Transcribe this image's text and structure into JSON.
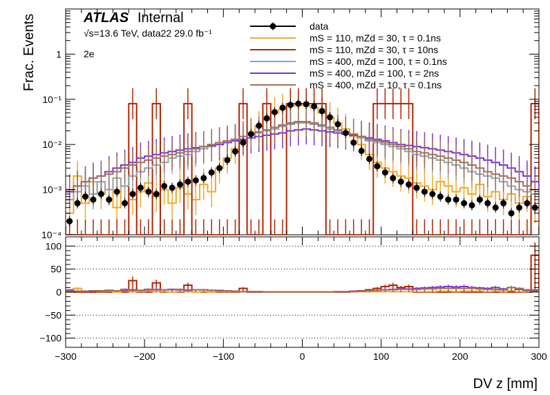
{
  "chart_data": [
    {
      "type": "line",
      "panel": "main",
      "title": "",
      "experiment_label": "ATLAS",
      "status_label": "Internal",
      "energy_line": "√s=13.6 TeV, data22 29.0 fb⁻¹",
      "channel_label": "2e",
      "ylabel": "Frac. Events",
      "xlabel": "DV z [mm]",
      "xlim": [
        -300,
        300
      ],
      "ylim": [
        0.0001,
        10
      ],
      "yscale": "log",
      "x_ticks": [
        "−300",
        "−200",
        "−100",
        "0",
        "100",
        "200",
        "300"
      ],
      "y_ticks": [
        "10⁻⁴",
        "10⁻³",
        "10⁻²",
        "10⁻¹",
        "1"
      ],
      "legend_position": "top-right",
      "x_bins": [
        -295,
        -285,
        -275,
        -265,
        -255,
        -245,
        -235,
        -225,
        -215,
        -205,
        -195,
        -185,
        -175,
        -165,
        -155,
        -145,
        -135,
        -125,
        -115,
        -105,
        -95,
        -85,
        -75,
        -65,
        -55,
        -45,
        -35,
        -25,
        -15,
        -5,
        5,
        15,
        25,
        35,
        45,
        55,
        65,
        75,
        85,
        95,
        105,
        115,
        125,
        135,
        145,
        155,
        165,
        175,
        185,
        195,
        205,
        215,
        225,
        235,
        245,
        255,
        265,
        275,
        285,
        295
      ],
      "series": [
        {
          "name": "data",
          "style": "markers",
          "color": "#000000",
          "values": [
            0.0002,
            0.0005,
            0.0007,
            0.0006,
            0.0008,
            0.0006,
            0.0009,
            0.0005,
            0.0008,
            0.0011,
            0.0009,
            0.0008,
            0.0012,
            0.0011,
            0.0013,
            0.0015,
            0.0016,
            0.0018,
            0.0024,
            0.003,
            0.0045,
            0.007,
            0.011,
            0.017,
            0.026,
            0.038,
            0.052,
            0.065,
            0.075,
            0.08,
            0.078,
            0.07,
            0.055,
            0.04,
            0.028,
            0.018,
            0.011,
            0.0072,
            0.0048,
            0.0033,
            0.0024,
            0.0018,
            0.0015,
            0.0013,
            0.0011,
            0.0009,
            0.0008,
            0.0007,
            0.0006,
            0.0006,
            0.0005,
            0.00045,
            0.0006,
            0.0005,
            0.0004,
            0.0005,
            0.0003,
            0.0004,
            0.0005,
            0.0004
          ]
        },
        {
          "name": "mS = 110, mZd = 30, τ = 0.1ns",
          "style": "hist",
          "color": "#f5a623",
          "values": [
            0.0003,
            0.002,
            0.0005,
            0.0015,
            0.0008,
            0.001,
            0.0004,
            0.0012,
            0.0006,
            0.0009,
            0.0014,
            0.0007,
            0.001,
            0.0005,
            0.0011,
            0.0008,
            0.0006,
            0.0013,
            0.0009,
            0.003,
            0.005,
            0.008,
            0.012,
            0.018,
            0.025,
            0.035,
            0.05,
            0.06,
            0.07,
            0.075,
            0.072,
            0.065,
            0.05,
            0.04,
            0.03,
            0.022,
            0.015,
            0.01,
            0.006,
            0.004,
            0.003,
            0.0025,
            0.002,
            0.0018,
            0.0014,
            0.0012,
            0.001,
            0.0015,
            0.0012,
            0.0009,
            0.0011,
            0.0008,
            0.0013,
            0.0007,
            0.0009,
            0.0006,
            0.0008,
            0.0005,
            0.0007,
            0.0004
          ]
        },
        {
          "name": "mS = 110, mZd = 30, τ = 10ns",
          "style": "hist",
          "color": "#b22200",
          "values": [
            0.0001,
            0.0001,
            0.0001,
            0.0001,
            0.0001,
            0.0001,
            0.0001,
            0.0001,
            0.08,
            0.0001,
            0.0001,
            0.08,
            0.0001,
            0.0001,
            0.0001,
            0.08,
            0.0001,
            0.0001,
            0.0001,
            0.0001,
            0.0001,
            0.0001,
            0.08,
            0.0001,
            0.0001,
            0.08,
            0.0001,
            0.0001,
            0.08,
            0.08,
            0.08,
            0.08,
            0.08,
            0.0001,
            0.0001,
            0.0001,
            0.0001,
            0.0001,
            0.0001,
            0.08,
            0.08,
            0.08,
            0.08,
            0.08,
            0.0001,
            0.0001,
            0.0001,
            0.0001,
            0.0001,
            0.0001,
            0.0001,
            0.0001,
            0.0001,
            0.0001,
            0.0001,
            0.0001,
            0.0001,
            0.0001,
            0.0001,
            0.08
          ]
        },
        {
          "name": "mS = 400, mZd = 100, τ = 0.1ns",
          "style": "hist",
          "color": "#8ea3a8",
          "values": [
            0.0006,
            0.0009,
            0.0012,
            0.0008,
            0.0015,
            0.001,
            0.0018,
            0.0012,
            0.002,
            0.0025,
            0.003,
            0.0035,
            0.004,
            0.005,
            0.0055,
            0.006,
            0.007,
            0.008,
            0.009,
            0.01,
            0.012,
            0.013,
            0.015,
            0.016,
            0.018,
            0.02,
            0.022,
            0.025,
            0.028,
            0.03,
            0.03,
            0.028,
            0.025,
            0.022,
            0.02,
            0.018,
            0.016,
            0.014,
            0.012,
            0.011,
            0.01,
            0.009,
            0.008,
            0.007,
            0.006,
            0.0055,
            0.005,
            0.0045,
            0.004,
            0.0035,
            0.003,
            0.0025,
            0.0022,
            0.002,
            0.0018,
            0.0015,
            0.0012,
            0.001,
            0.0009,
            0.0008
          ]
        },
        {
          "name": "mS = 400, mZd = 100, τ = 2ns",
          "style": "hist",
          "color": "#7b2fd9",
          "values": [
            0.0009,
            0.0012,
            0.0015,
            0.0018,
            0.002,
            0.0025,
            0.003,
            0.0035,
            0.004,
            0.005,
            0.0055,
            0.006,
            0.0065,
            0.007,
            0.0075,
            0.008,
            0.0085,
            0.009,
            0.0095,
            0.01,
            0.011,
            0.012,
            0.013,
            0.014,
            0.015,
            0.016,
            0.017,
            0.018,
            0.02,
            0.021,
            0.022,
            0.021,
            0.02,
            0.019,
            0.018,
            0.017,
            0.016,
            0.015,
            0.014,
            0.013,
            0.012,
            0.011,
            0.01,
            0.0095,
            0.009,
            0.0085,
            0.008,
            0.0075,
            0.007,
            0.0065,
            0.006,
            0.0055,
            0.005,
            0.0045,
            0.004,
            0.0035,
            0.003,
            0.0025,
            0.002,
            0.0015
          ]
        },
        {
          "name": "mS = 400, mZd = 10, τ = 0.1ns",
          "style": "hist",
          "color": "#a0705a",
          "values": [
            0.001,
            0.0012,
            0.0015,
            0.0018,
            0.002,
            0.0022,
            0.0025,
            0.003,
            0.0035,
            0.004,
            0.0045,
            0.005,
            0.0055,
            0.006,
            0.0065,
            0.007,
            0.008,
            0.009,
            0.01,
            0.011,
            0.012,
            0.013,
            0.015,
            0.017,
            0.019,
            0.021,
            0.024,
            0.027,
            0.03,
            0.032,
            0.032,
            0.03,
            0.027,
            0.024,
            0.021,
            0.019,
            0.017,
            0.015,
            0.013,
            0.012,
            0.011,
            0.01,
            0.009,
            0.008,
            0.007,
            0.0065,
            0.006,
            0.0055,
            0.005,
            0.0045,
            0.004,
            0.0035,
            0.003,
            0.0025,
            0.0022,
            0.002,
            0.0018,
            0.0015,
            0.0012,
            0.001
          ]
        }
      ]
    },
    {
      "type": "line",
      "panel": "ratio",
      "title": "",
      "xlabel": "DV z [mm]",
      "ylabel": "",
      "xlim": [
        -300,
        300
      ],
      "ylim": [
        -120,
        120
      ],
      "y_ticks": [
        "100",
        "50",
        "0",
        "−50",
        "−100"
      ],
      "y_tick_values": [
        100,
        50,
        0,
        -50,
        -100
      ],
      "grid": "dotted horizontal",
      "x_bins": [
        -295,
        -285,
        -275,
        -265,
        -255,
        -245,
        -235,
        -225,
        -215,
        -205,
        -195,
        -185,
        -175,
        -165,
        -155,
        -145,
        -135,
        -125,
        -115,
        -105,
        -95,
        -85,
        -75,
        -65,
        -55,
        -45,
        -35,
        -25,
        -15,
        -5,
        5,
        15,
        25,
        35,
        45,
        55,
        65,
        75,
        85,
        95,
        105,
        115,
        125,
        135,
        145,
        155,
        165,
        175,
        185,
        195,
        205,
        215,
        225,
        235,
        245,
        255,
        265,
        275,
        285,
        295
      ],
      "series": [
        {
          "name": "mS = 110, mZd = 30, τ = 10ns",
          "color": "#b22200",
          "values": [
            0,
            0,
            0,
            0,
            0,
            0,
            0,
            0,
            25,
            0,
            0,
            20,
            0,
            0,
            0,
            15,
            0,
            0,
            0,
            0,
            0,
            0,
            8,
            0,
            0,
            0,
            0,
            0,
            0,
            0,
            0,
            0,
            0,
            0,
            0,
            0,
            2,
            3,
            5,
            8,
            12,
            15,
            10,
            12,
            0,
            0,
            0,
            0,
            0,
            0,
            0,
            0,
            0,
            0,
            0,
            0,
            0,
            0,
            0,
            80
          ]
        },
        {
          "name": "mS = 110, mZd = 30, τ = 0.1ns",
          "color": "#f5a623",
          "values": [
            0,
            8,
            2,
            3,
            1,
            2,
            0,
            2,
            1,
            1,
            2,
            1,
            1,
            0,
            1,
            1,
            0,
            1,
            0,
            1,
            1,
            1,
            1,
            1,
            1,
            1,
            1,
            1,
            1,
            1,
            1,
            1,
            1,
            1,
            1,
            1,
            1,
            1,
            1,
            1,
            1,
            1,
            1,
            1,
            1,
            1,
            1,
            2,
            2,
            1,
            2,
            2,
            2,
            1,
            2,
            1,
            3,
            1,
            1,
            1
          ]
        },
        {
          "name": "mS = 400, mZd = 100, τ = 2ns",
          "color": "#7b2fd9",
          "values": [
            3,
            2,
            2,
            3,
            2,
            4,
            3,
            4,
            5,
            4,
            6,
            5,
            5,
            6,
            5,
            4,
            5,
            5,
            4,
            3,
            3,
            2,
            1,
            1,
            1,
            0,
            0,
            0,
            0,
            0,
            0,
            0,
            0,
            0,
            1,
            1,
            1,
            2,
            3,
            4,
            5,
            6,
            7,
            7,
            8,
            9,
            10,
            11,
            12,
            11,
            12,
            10,
            9,
            8,
            10,
            7,
            10,
            6,
            4,
            3
          ]
        },
        {
          "name": "mS = 400, mZd = 10, τ = 0.1ns",
          "color": "#a0705a",
          "values": [
            5,
            2,
            2,
            3,
            3,
            4,
            3,
            6,
            4,
            4,
            5,
            6,
            5,
            5,
            6,
            5,
            5,
            5,
            4,
            4,
            3,
            2,
            1,
            1,
            1,
            0,
            0,
            0,
            0,
            0,
            0,
            0,
            0,
            0,
            1,
            1,
            1,
            2,
            3,
            4,
            5,
            5,
            6,
            6,
            6,
            7,
            7,
            8,
            8,
            8,
            8,
            8,
            7,
            6,
            6,
            5,
            10,
            8,
            5,
            5
          ]
        }
      ]
    }
  ]
}
